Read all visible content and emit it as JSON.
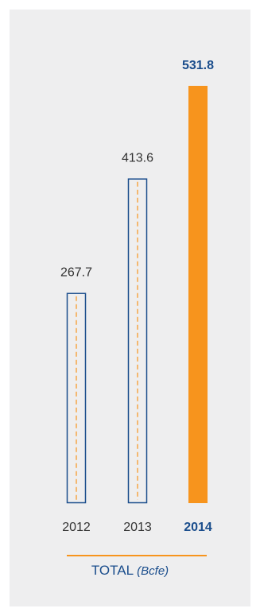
{
  "chart_data": {
    "type": "bar",
    "categories": [
      "2012",
      "2013",
      "2014"
    ],
    "values": [
      267.7,
      413.6,
      531.8
    ],
    "value_labels": [
      "267.7",
      "413.6",
      "531.8"
    ],
    "highlight": "2014",
    "title": "TOTAL",
    "unit": "(Bcfe)",
    "xlabel": "",
    "ylabel": "",
    "grid": false,
    "legend": "none"
  },
  "colors": {
    "background": "#eeeeef",
    "highlight_bar": "#f7941d",
    "outline": "#1a4d8c",
    "dash": "#f7941d",
    "text": "#333333",
    "highlight_text": "#1a4d8c"
  }
}
